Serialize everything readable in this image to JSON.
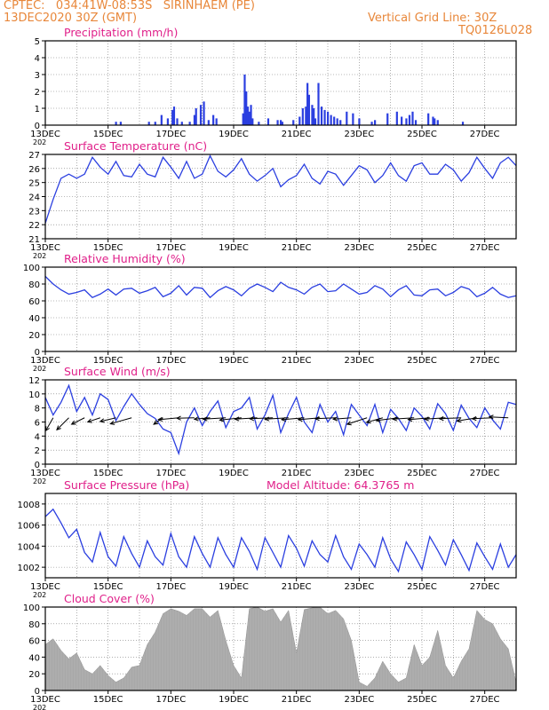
{
  "header": {
    "line1": "CPTEC:   034:41W-08:53S   SIRINHAEM (PE)",
    "line2": "13DEC2020 30Z (GMT)",
    "grid_note": "Vertical Grid Line: 30Z",
    "run_id": "TQ0126L028"
  },
  "colors": {
    "header": "#e8873a",
    "title": "#e0208a",
    "line": "#2b3fe0",
    "cloud": "#a8a8a8",
    "arrow": "#000000",
    "grid": "#777777"
  },
  "x_axis": {
    "start_day": 13,
    "end_day": 28,
    "ticks": [
      "13DEC",
      "15DEC",
      "17DEC",
      "19DEC",
      "21DEC",
      "23DEC",
      "25DEC",
      "27DEC"
    ],
    "tick_days": [
      13,
      15,
      17,
      19,
      21,
      23,
      25,
      27
    ],
    "first_label_suffix": "202"
  },
  "chart_data": [
    {
      "id": "precip",
      "type": "bar",
      "title": "Precipitation (mm/h)",
      "ylim": [
        0,
        5
      ],
      "yticks": [
        "0",
        "1",
        "2",
        "3",
        "4",
        "5"
      ],
      "ytick_values": [
        0,
        1,
        2,
        3,
        4,
        5
      ],
      "x_days": [
        15.25,
        15.4,
        16.3,
        16.5,
        16.7,
        16.9,
        17.05,
        17.1,
        17.2,
        17.35,
        17.6,
        17.75,
        17.8,
        17.95,
        18.05,
        18.2,
        18.35,
        18.45,
        19.3,
        19.35,
        19.4,
        19.45,
        19.5,
        19.55,
        19.6,
        19.8,
        20.1,
        20.4,
        20.5,
        20.55,
        20.9,
        21.1,
        21.2,
        21.3,
        21.35,
        21.4,
        21.5,
        21.55,
        21.6,
        21.7,
        21.8,
        21.9,
        22.0,
        22.1,
        22.2,
        22.3,
        22.4,
        22.6,
        22.8,
        23.0,
        23.4,
        23.5,
        23.9,
        24.2,
        24.35,
        24.5,
        24.6,
        24.7,
        24.8,
        25.2,
        25.35,
        25.4,
        25.5,
        26.3
      ],
      "values": [
        0.2,
        0.2,
        0.2,
        0.2,
        0.6,
        0.4,
        0.9,
        1.1,
        0.4,
        0.2,
        0.2,
        0.6,
        1.0,
        1.2,
        1.4,
        0.3,
        0.6,
        0.4,
        0.7,
        3.0,
        2.0,
        1.1,
        0.8,
        1.2,
        0.4,
        0.2,
        0.4,
        0.3,
        0.3,
        0.2,
        0.3,
        0.5,
        1.0,
        1.1,
        2.5,
        1.8,
        1.2,
        1.0,
        0.4,
        2.5,
        1.1,
        0.9,
        0.8,
        0.6,
        0.5,
        0.4,
        0.3,
        0.8,
        0.7,
        0.4,
        0.2,
        0.3,
        0.7,
        0.8,
        0.5,
        0.4,
        0.6,
        0.8,
        0.3,
        0.7,
        0.5,
        0.4,
        0.3,
        0.2
      ]
    },
    {
      "id": "temp",
      "type": "line",
      "title": "Surface Temperature (nC)",
      "ylim": [
        21,
        27
      ],
      "yticks": [
        "21",
        "22",
        "23",
        "24",
        "25",
        "26",
        "27"
      ],
      "ytick_values": [
        21,
        22,
        23,
        24,
        25,
        26,
        27
      ],
      "x_days": [
        13.0,
        13.25,
        13.5,
        13.75,
        14.0,
        14.25,
        14.5,
        14.75,
        15.0,
        15.25,
        15.5,
        15.75,
        16.0,
        16.25,
        16.5,
        16.75,
        17.0,
        17.25,
        17.5,
        17.75,
        18.0,
        18.25,
        18.5,
        18.75,
        19.0,
        19.25,
        19.5,
        19.75,
        20.0,
        20.25,
        20.5,
        20.75,
        21.0,
        21.25,
        21.5,
        21.75,
        22.0,
        22.25,
        22.5,
        22.75,
        23.0,
        23.25,
        23.5,
        23.75,
        24.0,
        24.25,
        24.5,
        24.75,
        25.0,
        25.25,
        25.5,
        25.75,
        26.0,
        26.25,
        26.5,
        26.75,
        27.0,
        27.25,
        27.5,
        27.75,
        28.0
      ],
      "values": [
        22.1,
        23.8,
        25.3,
        25.6,
        25.3,
        25.6,
        26.8,
        26.1,
        25.6,
        26.5,
        25.5,
        25.4,
        26.3,
        25.6,
        25.4,
        26.8,
        26.1,
        25.3,
        26.5,
        25.3,
        25.6,
        26.9,
        25.8,
        25.4,
        25.9,
        26.7,
        25.6,
        25.1,
        25.5,
        26.0,
        24.7,
        25.2,
        25.5,
        26.3,
        25.3,
        24.9,
        25.8,
        25.6,
        24.8,
        25.5,
        26.2,
        25.9,
        25.0,
        25.5,
        26.4,
        25.5,
        25.1,
        26.2,
        26.4,
        25.6,
        25.6,
        26.3,
        25.9,
        25.1,
        25.7,
        26.8,
        26.0,
        25.3,
        26.4,
        26.8,
        26.2
      ]
    },
    {
      "id": "humidity",
      "type": "line",
      "title": "Relative Humidity (%)",
      "ylim": [
        0,
        100
      ],
      "yticks": [
        "0",
        "20",
        "40",
        "60",
        "80",
        "100"
      ],
      "ytick_values": [
        0,
        20,
        40,
        60,
        80,
        100
      ],
      "x_days": [
        13.0,
        13.25,
        13.5,
        13.75,
        14.0,
        14.25,
        14.5,
        14.75,
        15.0,
        15.25,
        15.5,
        15.75,
        16.0,
        16.25,
        16.5,
        16.75,
        17.0,
        17.25,
        17.5,
        17.75,
        18.0,
        18.25,
        18.5,
        18.75,
        19.0,
        19.25,
        19.5,
        19.75,
        20.0,
        20.25,
        20.5,
        20.75,
        21.0,
        21.25,
        21.5,
        21.75,
        22.0,
        22.25,
        22.5,
        22.75,
        23.0,
        23.25,
        23.5,
        23.75,
        24.0,
        24.25,
        24.5,
        24.75,
        25.0,
        25.25,
        25.5,
        25.75,
        26.0,
        26.25,
        26.5,
        26.75,
        27.0,
        27.25,
        27.5,
        27.75,
        28.0
      ],
      "values": [
        89,
        80,
        73,
        68,
        70,
        73,
        64,
        68,
        74,
        67,
        74,
        75,
        69,
        72,
        76,
        65,
        69,
        78,
        67,
        76,
        75,
        64,
        72,
        77,
        73,
        66,
        75,
        80,
        76,
        71,
        82,
        76,
        73,
        68,
        76,
        80,
        71,
        72,
        80,
        74,
        68,
        70,
        78,
        74,
        65,
        73,
        78,
        67,
        66,
        73,
        74,
        66,
        70,
        77,
        74,
        65,
        69,
        76,
        68,
        64,
        66
      ]
    },
    {
      "id": "wind",
      "type": "line",
      "title": "Surface Wind (m/s)",
      "ylim": [
        0,
        12
      ],
      "yticks": [
        "0",
        "2",
        "4",
        "6",
        "8",
        "10",
        "12"
      ],
      "ytick_values": [
        0,
        2,
        4,
        6,
        8,
        10,
        12
      ],
      "x_days": [
        13.0,
        13.25,
        13.5,
        13.75,
        14.0,
        14.25,
        14.5,
        14.75,
        15.0,
        15.25,
        15.5,
        15.75,
        16.0,
        16.25,
        16.5,
        16.75,
        17.0,
        17.25,
        17.5,
        17.75,
        18.0,
        18.25,
        18.5,
        18.75,
        19.0,
        19.25,
        19.5,
        19.75,
        20.0,
        20.25,
        20.5,
        20.75,
        21.0,
        21.25,
        21.5,
        21.75,
        22.0,
        22.25,
        22.5,
        22.75,
        23.0,
        23.25,
        23.5,
        23.75,
        24.0,
        24.25,
        24.5,
        24.75,
        25.0,
        25.25,
        25.5,
        25.75,
        26.0,
        26.25,
        26.5,
        26.75,
        27.0,
        27.25,
        27.5,
        27.75,
        28.0
      ],
      "values": [
        9.5,
        7.0,
        8.8,
        11.2,
        7.5,
        9.5,
        7.0,
        10.0,
        9.2,
        6.2,
        8.2,
        10.0,
        8.5,
        7.2,
        6.5,
        5.0,
        4.5,
        1.5,
        6.0,
        8.0,
        5.5,
        7.5,
        9.0,
        5.2,
        7.5,
        8.0,
        9.5,
        5.0,
        7.0,
        9.8,
        4.5,
        7.2,
        9.5,
        6.0,
        4.5,
        8.5,
        6.0,
        7.5,
        4.2,
        8.5,
        7.0,
        5.5,
        8.5,
        4.5,
        7.8,
        6.5,
        4.8,
        8.0,
        6.8,
        5.0,
        8.6,
        7.2,
        4.8,
        8.4,
        6.5,
        5.2,
        8.0,
        6.3,
        5.0,
        8.8,
        8.5
      ],
      "arrows": {
        "x_days": [
          13.25,
          13.75,
          14.25,
          14.75,
          15.25,
          15.75,
          16.75,
          17.25,
          17.75,
          18.25,
          18.75,
          19.25,
          19.75,
          20.25,
          20.75,
          21.25,
          21.75,
          22.25,
          22.75,
          23.25,
          23.75,
          24.25,
          24.75,
          25.25,
          25.75,
          26.25,
          26.75,
          27.25,
          27.75
        ],
        "u": [
          -1.6,
          -2.6,
          -2.8,
          -2.7,
          -3.4,
          -4.6,
          -2.0,
          -4.4,
          -3.8,
          -3.4,
          -4.9,
          -4.7,
          -4.8,
          -5.0,
          -5.1,
          -4.9,
          -4.7,
          -4.4,
          -3.9,
          -4.3,
          -3.5,
          -4.8,
          -4.6,
          -4.7,
          -4.5,
          -4.7,
          -4.3,
          -4.4,
          -4.1
        ],
        "v": [
          -2.8,
          -2.6,
          -1.4,
          -0.9,
          -0.8,
          -1.3,
          -1.4,
          -0.4,
          -0.1,
          -0.3,
          -0.3,
          -0.5,
          -0.3,
          -0.2,
          -0.3,
          -0.4,
          -0.4,
          -0.2,
          -0.3,
          -1.4,
          -1.0,
          -0.6,
          -0.3,
          -0.4,
          -0.3,
          -0.2,
          -0.7,
          -0.2,
          0.2
        ]
      }
    },
    {
      "id": "pressure",
      "type": "line",
      "title": "Surface Pressure (hPa)",
      "model_altitude": "Model Altitude: 64.3765 m",
      "ylim": [
        1001,
        1009
      ],
      "yticks": [
        "1002",
        "1004",
        "1006",
        "1008"
      ],
      "ytick_values": [
        1002,
        1004,
        1006,
        1008
      ],
      "x_days": [
        13.0,
        13.25,
        13.5,
        13.75,
        14.0,
        14.25,
        14.5,
        14.75,
        15.0,
        15.25,
        15.5,
        15.75,
        16.0,
        16.25,
        16.5,
        16.75,
        17.0,
        17.25,
        17.5,
        17.75,
        18.0,
        18.25,
        18.5,
        18.75,
        19.0,
        19.25,
        19.5,
        19.75,
        20.0,
        20.25,
        20.5,
        20.75,
        21.0,
        21.25,
        21.5,
        21.75,
        22.0,
        22.25,
        22.5,
        22.75,
        23.0,
        23.25,
        23.5,
        23.75,
        24.0,
        24.25,
        24.5,
        24.75,
        25.0,
        25.25,
        25.5,
        25.75,
        26.0,
        26.25,
        26.5,
        26.75,
        27.0,
        27.25,
        27.5,
        27.75,
        28.0
      ],
      "values": [
        1006.8,
        1007.5,
        1006.2,
        1004.8,
        1005.6,
        1003.4,
        1002.5,
        1005.3,
        1003.0,
        1002.1,
        1004.9,
        1003.3,
        1002.0,
        1004.5,
        1003.0,
        1002.2,
        1005.2,
        1003.0,
        1002.0,
        1004.9,
        1003.3,
        1002.0,
        1004.8,
        1003.2,
        1002.0,
        1004.8,
        1003.5,
        1001.8,
        1004.8,
        1003.4,
        1002.0,
        1005.0,
        1003.8,
        1002.1,
        1004.5,
        1003.2,
        1002.5,
        1005.0,
        1003.0,
        1001.8,
        1004.2,
        1003.2,
        1002.0,
        1004.8,
        1002.8,
        1001.6,
        1004.4,
        1003.2,
        1001.8,
        1004.9,
        1003.6,
        1002.2,
        1004.6,
        1003.2,
        1001.7,
        1004.3,
        1003.0,
        1001.8,
        1004.2,
        1002.0,
        1003.2
      ]
    },
    {
      "id": "cloud",
      "type": "area",
      "title": "Cloud Cover (%)",
      "ylim": [
        0,
        100
      ],
      "yticks": [
        "0",
        "20",
        "40",
        "60",
        "80",
        "100"
      ],
      "ytick_values": [
        0,
        20,
        40,
        60,
        80,
        100
      ],
      "x_days": [
        13.0,
        13.25,
        13.5,
        13.75,
        14.0,
        14.25,
        14.5,
        14.75,
        15.0,
        15.25,
        15.5,
        15.75,
        16.0,
        16.25,
        16.5,
        16.75,
        17.0,
        17.25,
        17.5,
        17.75,
        18.0,
        18.25,
        18.5,
        18.75,
        19.0,
        19.25,
        19.5,
        19.75,
        20.0,
        20.25,
        20.5,
        20.75,
        21.0,
        21.25,
        21.5,
        21.75,
        22.0,
        22.25,
        22.5,
        22.75,
        23.0,
        23.25,
        23.5,
        23.75,
        24.0,
        24.25,
        24.5,
        24.75,
        25.0,
        25.25,
        25.5,
        25.75,
        26.0,
        26.25,
        26.5,
        26.75,
        27.0,
        27.25,
        27.5,
        27.75,
        28.0
      ],
      "values": [
        55,
        62,
        48,
        38,
        45,
        25,
        20,
        30,
        18,
        10,
        15,
        28,
        30,
        55,
        70,
        92,
        98,
        95,
        90,
        98,
        98,
        88,
        96,
        60,
        30,
        15,
        98,
        100,
        95,
        98,
        82,
        96,
        45,
        97,
        99,
        100,
        92,
        96,
        86,
        60,
        10,
        5,
        15,
        35,
        20,
        10,
        15,
        55,
        30,
        40,
        72,
        30,
        15,
        35,
        50,
        96,
        85,
        80,
        62,
        50,
        10
      ]
    }
  ]
}
